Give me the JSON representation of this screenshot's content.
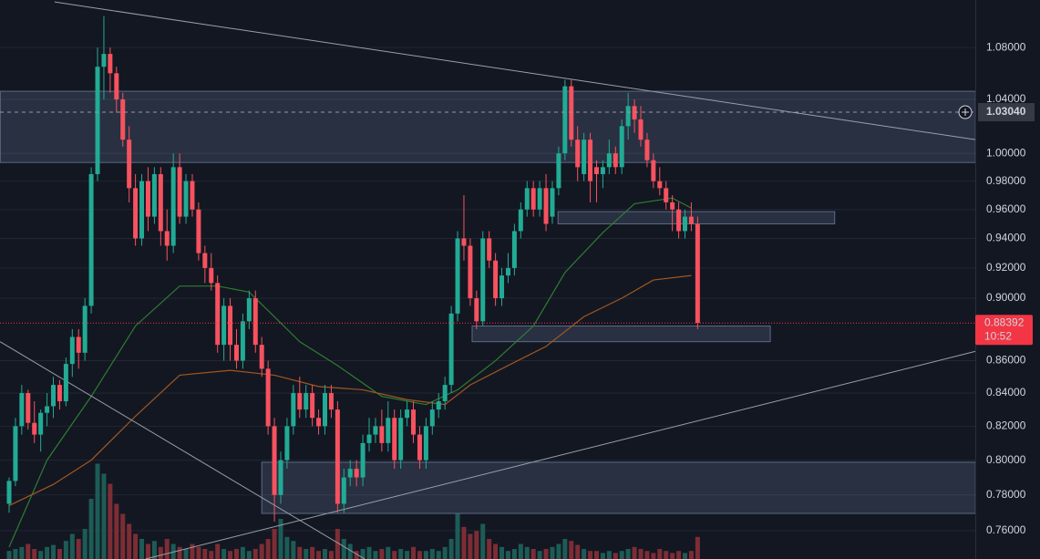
{
  "chart_data": {
    "type": "candlestick",
    "log_scale": true,
    "grid": true,
    "ylim": [
      0.7445,
      1.118
    ],
    "yticks": [
      {
        "value": 1.08,
        "label": "1.08000"
      },
      {
        "value": 1.04,
        "label": "1.04000"
      },
      {
        "value": 1.0,
        "label": "1.00000"
      },
      {
        "value": 0.98,
        "label": "0.98000"
      },
      {
        "value": 0.96,
        "label": "0.96000"
      },
      {
        "value": 0.94,
        "label": "0.94000"
      },
      {
        "value": 0.92,
        "label": "0.92000"
      },
      {
        "value": 0.9,
        "label": "0.90000"
      },
      {
        "value": 0.86,
        "label": "0.86000"
      },
      {
        "value": 0.84,
        "label": "0.84000"
      },
      {
        "value": 0.82,
        "label": "0.82000"
      },
      {
        "value": 0.8,
        "label": "0.80000"
      },
      {
        "value": 0.78,
        "label": "0.78000"
      },
      {
        "value": 0.76,
        "label": "0.76000"
      }
    ],
    "up_color": "#22ab94",
    "down_color": "#f7525f",
    "open": [
      0.775,
      0.788,
      0.82,
      0.84,
      0.822,
      0.815,
      0.828,
      0.832,
      0.845,
      0.835,
      0.858,
      0.875,
      0.865,
      0.895,
      0.985,
      1.065,
      1.075,
      1.06,
      1.04,
      1.01,
      0.975,
      0.94,
      0.98,
      0.955,
      0.985,
      0.945,
      0.935,
      0.99,
      0.955,
      0.98,
      0.96,
      0.93,
      0.92,
      0.91,
      0.87,
      0.895,
      0.87,
      0.86,
      0.885,
      0.9,
      0.87,
      0.855,
      0.82,
      0.78,
      0.8,
      0.82,
      0.84,
      0.83,
      0.84,
      0.825,
      0.82,
      0.84,
      0.83,
      0.775,
      0.79,
      0.795,
      0.79,
      0.81,
      0.815,
      0.82,
      0.81,
      0.825,
      0.8,
      0.825,
      0.83,
      0.815,
      0.8,
      0.82,
      0.83,
      0.835,
      0.845,
      0.89,
      0.94,
      0.935,
      0.9,
      0.885,
      0.94,
      0.925,
      0.9,
      0.915,
      0.92,
      0.945,
      0.96,
      0.975,
      0.96,
      0.975,
      0.955,
      0.975,
      1.0,
      1.05,
      1.01,
      0.985,
      1.01,
      0.99,
      0.985,
      0.99,
      1.0,
      0.99,
      1.02,
      1.035,
      1.025,
      1.01,
      0.995,
      0.98,
      0.975,
      0.965,
      0.96,
      0.945,
      0.955,
      0.95
    ],
    "high": [
      0.79,
      0.825,
      0.845,
      0.842,
      0.835,
      0.83,
      0.84,
      0.85,
      0.848,
      0.862,
      0.88,
      0.88,
      0.9,
      0.99,
      1.08,
      1.105,
      1.08,
      1.065,
      1.045,
      1.02,
      0.985,
      0.985,
      0.99,
      0.99,
      0.99,
      0.96,
      1.0,
      1.0,
      0.985,
      0.985,
      0.965,
      0.935,
      0.93,
      0.915,
      0.9,
      0.9,
      0.88,
      0.89,
      0.905,
      0.905,
      0.875,
      0.86,
      0.825,
      0.805,
      0.825,
      0.845,
      0.85,
      0.845,
      0.845,
      0.83,
      0.845,
      0.845,
      0.835,
      0.795,
      0.8,
      0.8,
      0.815,
      0.825,
      0.825,
      0.83,
      0.835,
      0.83,
      0.83,
      0.835,
      0.835,
      0.82,
      0.825,
      0.835,
      0.84,
      0.85,
      0.895,
      0.945,
      0.97,
      0.94,
      0.905,
      0.945,
      0.945,
      0.93,
      0.92,
      0.93,
      0.95,
      0.965,
      0.98,
      0.98,
      0.98,
      0.985,
      0.98,
      1.005,
      1.055,
      1.055,
      1.02,
      1.015,
      1.015,
      0.995,
      0.995,
      1.01,
      1.005,
      1.025,
      1.045,
      1.04,
      1.035,
      1.015,
      1.0,
      0.99,
      0.98,
      0.97,
      0.965,
      0.96,
      0.965,
      0.955
    ],
    "low": [
      0.77,
      0.785,
      0.815,
      0.818,
      0.81,
      0.805,
      0.82,
      0.825,
      0.83,
      0.832,
      0.85,
      0.855,
      0.86,
      0.89,
      0.98,
      1.04,
      1.045,
      1.03,
      1.005,
      0.965,
      0.935,
      0.935,
      0.945,
      0.95,
      0.935,
      0.925,
      0.93,
      0.95,
      0.95,
      0.955,
      0.925,
      0.91,
      0.905,
      0.865,
      0.86,
      0.86,
      0.855,
      0.855,
      0.88,
      0.865,
      0.85,
      0.815,
      0.765,
      0.775,
      0.795,
      0.815,
      0.825,
      0.825,
      0.82,
      0.815,
      0.815,
      0.825,
      0.77,
      0.77,
      0.785,
      0.785,
      0.785,
      0.805,
      0.81,
      0.805,
      0.805,
      0.795,
      0.795,
      0.82,
      0.81,
      0.795,
      0.795,
      0.815,
      0.825,
      0.83,
      0.84,
      0.885,
      0.925,
      0.895,
      0.88,
      0.882,
      0.92,
      0.895,
      0.895,
      0.91,
      0.915,
      0.94,
      0.955,
      0.955,
      0.955,
      0.945,
      0.95,
      0.97,
      0.995,
      1.005,
      0.98,
      0.98,
      0.965,
      0.965,
      0.975,
      0.985,
      0.985,
      0.985,
      1.01,
      1.015,
      1.005,
      0.99,
      0.975,
      0.97,
      0.96,
      0.945,
      0.94,
      0.94,
      0.945,
      0.88
    ],
    "close": [
      0.788,
      0.82,
      0.84,
      0.822,
      0.815,
      0.828,
      0.832,
      0.845,
      0.835,
      0.858,
      0.875,
      0.865,
      0.895,
      0.985,
      1.065,
      1.075,
      1.06,
      1.04,
      1.01,
      0.975,
      0.94,
      0.98,
      0.955,
      0.985,
      0.945,
      0.935,
      0.99,
      0.955,
      0.98,
      0.96,
      0.93,
      0.92,
      0.91,
      0.87,
      0.895,
      0.87,
      0.86,
      0.885,
      0.9,
      0.87,
      0.855,
      0.82,
      0.78,
      0.8,
      0.82,
      0.84,
      0.83,
      0.84,
      0.825,
      0.82,
      0.84,
      0.83,
      0.775,
      0.79,
      0.795,
      0.79,
      0.81,
      0.815,
      0.82,
      0.81,
      0.825,
      0.8,
      0.825,
      0.83,
      0.815,
      0.8,
      0.82,
      0.83,
      0.835,
      0.845,
      0.89,
      0.94,
      0.935,
      0.9,
      0.885,
      0.94,
      0.925,
      0.9,
      0.915,
      0.92,
      0.945,
      0.96,
      0.975,
      0.96,
      0.975,
      0.95,
      0.975,
      1.0,
      1.05,
      1.01,
      0.99,
      1.01,
      0.98,
      0.985,
      0.99,
      1.0,
      0.99,
      1.02,
      1.035,
      1.025,
      1.01,
      0.995,
      0.98,
      0.975,
      0.965,
      0.96,
      0.945,
      0.955,
      0.95,
      0.88392
    ],
    "volume": {
      "up_color": "#1d5c56",
      "down_color": "#7d2d35",
      "values": [
        8,
        10,
        12,
        15,
        10,
        8,
        12,
        14,
        10,
        18,
        25,
        20,
        30,
        60,
        95,
        85,
        75,
        55,
        45,
        35,
        25,
        20,
        15,
        18,
        12,
        20,
        15,
        12,
        10,
        15,
        12,
        10,
        8,
        15,
        10,
        8,
        10,
        12,
        8,
        10,
        15,
        20,
        30,
        40,
        22,
        18,
        12,
        10,
        12,
        8,
        10,
        8,
        30,
        20,
        15,
        8,
        10,
        12,
        8,
        10,
        12,
        8,
        10,
        8,
        12,
        8,
        8,
        10,
        8,
        12,
        20,
        45,
        32,
        25,
        28,
        35,
        20,
        15,
        12,
        8,
        10,
        15,
        12,
        10,
        8,
        10,
        12,
        15,
        20,
        18,
        14,
        10,
        8,
        8,
        6,
        8,
        6,
        8,
        10,
        12,
        10,
        8,
        6,
        10,
        8,
        6,
        8,
        6,
        8,
        22
      ]
    },
    "moving_averages": [
      {
        "color": "#2e7d32",
        "x": [
          0,
          6,
          13,
          20,
          27,
          33,
          38,
          42,
          46,
          52,
          59,
          66,
          71,
          77,
          83,
          88,
          94,
          99,
          105,
          108
        ],
        "values": [
          0.751,
          0.8,
          0.838,
          0.882,
          0.908,
          0.908,
          0.904,
          0.888,
          0.872,
          0.857,
          0.838,
          0.833,
          0.842,
          0.86,
          0.882,
          0.917,
          0.944,
          0.964,
          0.968,
          0.961
        ]
      },
      {
        "color": "#a0581f",
        "x": [
          0,
          7,
          13,
          20,
          27,
          35,
          42,
          49,
          56,
          63,
          69,
          73,
          79,
          85,
          91,
          97,
          102,
          108
        ],
        "values": [
          0.774,
          0.786,
          0.8,
          0.826,
          0.851,
          0.854,
          0.851,
          0.844,
          0.842,
          0.836,
          0.833,
          0.845,
          0.857,
          0.869,
          0.888,
          0.9,
          0.912,
          0.915
        ]
      }
    ],
    "zones": [
      {
        "x": [
          -1.4,
          153
        ],
        "y": [
          0.9934,
          1.0462
        ]
      },
      {
        "x": [
          86.9,
          130.7
        ],
        "y": [
          0.95,
          0.9585
        ]
      },
      {
        "x": [
          73.3,
          120.5
        ],
        "y": [
          0.872,
          0.882
        ]
      },
      {
        "x": [
          40,
          153
        ],
        "y": [
          0.7696,
          0.7988
        ]
      }
    ],
    "trend_lines": [
      {
        "x": [
          7.2,
          153
        ],
        "y": [
          1.1164,
          1.01
        ]
      },
      {
        "x": [
          -1.44,
          56.3
        ],
        "y": [
          0.872,
          0.7445
        ]
      },
      {
        "x": [
          21.6,
          153
        ],
        "y": [
          0.7445,
          0.8659
        ]
      }
    ],
    "crosshair": {
      "value": 1.0304,
      "label": "1.03040"
    },
    "last_price_color": "#f23645",
    "countdown": "10:52"
  }
}
